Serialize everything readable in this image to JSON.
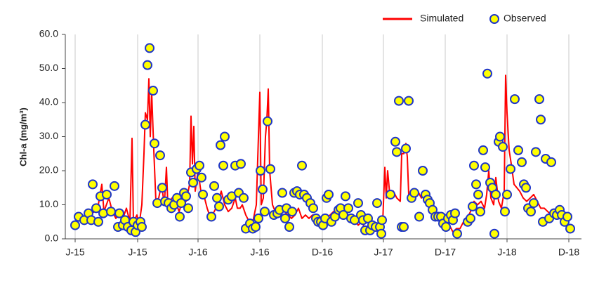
{
  "chart_data": {
    "type": "line",
    "ylabel": "Chl-a (mg/m³)",
    "xlim": [
      -14,
      721
    ],
    "xticks": [
      {
        "value": 0,
        "label": "J-15"
      },
      {
        "value": 89,
        "label": "J-15"
      },
      {
        "value": 175,
        "label": "J-16"
      },
      {
        "value": 263,
        "label": "J-16"
      },
      {
        "value": 352,
        "label": "D-16"
      },
      {
        "value": 439,
        "label": "J-17"
      },
      {
        "value": 527,
        "label": "D-17"
      },
      {
        "value": 615,
        "label": "J-18"
      },
      {
        "value": 703,
        "label": "D-18"
      }
    ],
    "ylim": [
      0,
      60
    ],
    "yticks": [
      {
        "value": 0,
        "label": "0.0"
      },
      {
        "value": 10,
        "label": "10.0"
      },
      {
        "value": 20,
        "label": "20.0"
      },
      {
        "value": 30,
        "label": "30.0"
      },
      {
        "value": 40,
        "label": "40.0"
      },
      {
        "value": 50,
        "label": "50.0"
      },
      {
        "value": 60,
        "label": "60.0"
      }
    ],
    "grid": "x",
    "legend": "upper right",
    "series": [
      {
        "name": "Simulated",
        "type": "line",
        "color": "#ff0000",
        "x": [
          0,
          8,
          18,
          28,
          33,
          38,
          41,
          48,
          53,
          58,
          63,
          68,
          73,
          78,
          81,
          83,
          88,
          91,
          95,
          98,
          100,
          103,
          105,
          107,
          109,
          112,
          115,
          119,
          123,
          127,
          130,
          132,
          138,
          143,
          148,
          153,
          158,
          163,
          165,
          167,
          169,
          171,
          175,
          179,
          183,
          188,
          193,
          198,
          203,
          208,
          213,
          218,
          223,
          228,
          231,
          235,
          238,
          243,
          248,
          253,
          258,
          261,
          263,
          265,
          268,
          271,
          273,
          275,
          277,
          281,
          285,
          289,
          293,
          298,
          303,
          308,
          313,
          318,
          323,
          328,
          333,
          338,
          343,
          348,
          353,
          358,
          363,
          368,
          373,
          378,
          383,
          388,
          393,
          398,
          403,
          408,
          413,
          418,
          423,
          428,
          433,
          438,
          441,
          443,
          445,
          448,
          453,
          458,
          463,
          465,
          468,
          471,
          473,
          475,
          479,
          483,
          488,
          493,
          498,
          503,
          508,
          513,
          518,
          523,
          528,
          533,
          538,
          543,
          548,
          553,
          558,
          563,
          568,
          573,
          578,
          583,
          586,
          589,
          592,
          596,
          599,
          603,
          607,
          611,
          613,
          615,
          618,
          621,
          625,
          629,
          633,
          638,
          643,
          648,
          653,
          658,
          663,
          668,
          673,
          678,
          683,
          688,
          693,
          698,
          703
        ],
        "values": [
          5,
          6,
          7,
          8,
          10,
          16,
          8,
          12,
          8,
          6,
          8,
          6,
          9,
          5,
          29.5,
          5,
          7,
          4,
          10,
          25,
          37,
          35,
          47,
          30,
          43,
          26,
          11,
          12,
          16,
          10,
          21,
          10,
          12,
          11,
          8,
          11,
          11,
          16,
          36,
          22,
          33,
          14,
          20,
          14,
          13,
          9,
          6,
          8,
          10,
          14,
          10,
          8,
          9,
          12,
          9,
          9,
          10,
          7,
          5,
          5,
          10,
          30,
          43,
          10,
          12,
          30,
          35,
          44,
          20,
          10,
          8,
          7,
          9,
          8,
          7,
          6,
          7,
          9,
          6,
          7,
          6,
          7,
          5,
          6,
          7,
          6,
          7,
          8,
          7,
          9,
          8,
          7,
          6,
          6,
          4,
          5,
          3,
          4,
          2,
          4,
          3,
          5,
          21,
          12,
          20,
          13,
          14,
          12,
          11,
          25,
          25,
          28,
          24,
          13,
          12,
          12,
          14,
          12,
          13,
          10,
          9,
          7,
          6,
          5,
          6,
          4,
          2,
          3,
          3,
          5,
          6,
          8,
          11,
          10,
          11,
          9,
          13,
          20,
          12,
          10,
          18,
          11,
          9,
          14,
          48,
          37,
          26,
          22,
          16,
          15,
          14,
          12,
          11,
          12,
          13,
          11,
          9,
          9,
          8,
          7,
          7,
          8,
          9,
          4,
          7
        ]
      },
      {
        "name": "Observed",
        "type": "scatter",
        "color": "#ffff00",
        "edgecolor": "#1f36c8",
        "x": [
          0,
          5,
          13,
          19,
          25,
          23,
          30,
          33,
          36,
          40,
          45,
          51,
          56,
          61,
          63,
          68,
          71,
          75,
          80,
          83,
          86,
          89,
          93,
          95,
          100,
          103,
          106,
          111,
          113,
          117,
          121,
          124,
          128,
          133,
          137,
          141,
          145,
          149,
          151,
          155,
          158,
          161,
          165,
          168,
          173,
          177,
          180,
          182,
          194,
          198,
          202,
          205,
          207,
          211,
          213,
          218,
          223,
          228,
          233,
          236,
          240,
          243,
          249,
          253,
          257,
          261,
          264,
          267,
          270,
          274,
          278,
          283,
          288,
          291,
          295,
          299,
          301,
          305,
          309,
          312,
          316,
          320,
          323,
          326,
          330,
          335,
          339,
          343,
          346,
          350,
          353,
          356,
          358,
          361,
          365,
          370,
          375,
          378,
          382,
          385,
          389,
          393,
          398,
          403,
          407,
          410,
          413,
          417,
          420,
          423,
          428,
          430,
          434,
          436,
          437,
          449,
          456,
          458,
          461,
          465,
          468,
          471,
          475,
          479,
          483,
          490,
          495,
          499,
          502,
          505,
          509,
          513,
          517,
          521,
          524,
          528,
          531,
          535,
          538,
          541,
          544,
          559,
          563,
          566,
          568,
          571,
          574,
          577,
          581,
          584,
          587,
          591,
          594,
          597,
          599,
          603,
          605,
          609,
          612,
          615,
          620,
          626,
          631,
          636,
          639,
          642,
          645,
          649,
          653,
          656,
          661,
          663,
          666,
          670,
          675,
          678,
          682,
          686,
          690,
          693,
          697,
          701,
          705
        ],
        "values": [
          4,
          6.5,
          5.5,
          7.5,
          16,
          5.5,
          9,
          5,
          12.5,
          7.5,
          13,
          8,
          15.5,
          3.5,
          7.5,
          4,
          5.5,
          3.5,
          2.5,
          5,
          2,
          4,
          5,
          3.5,
          33.5,
          51,
          56,
          43.5,
          28,
          10.5,
          24.5,
          15,
          11,
          10.5,
          9,
          10,
          12,
          6.5,
          10.5,
          13.5,
          12.5,
          9,
          19.5,
          16.5,
          20.5,
          21.5,
          18,
          13,
          6.5,
          15.5,
          12,
          9.5,
          27.5,
          21.5,
          30,
          11.5,
          12.5,
          21.5,
          13.5,
          22,
          12,
          3,
          4.5,
          3,
          3.5,
          6,
          20,
          14.5,
          8,
          34.5,
          20.5,
          7,
          7.5,
          8.5,
          13.5,
          6,
          9,
          3.5,
          8,
          13.5,
          14,
          13,
          21.5,
          13,
          12,
          10.5,
          9,
          6,
          5,
          5,
          4,
          6,
          12,
          13,
          5,
          6.5,
          8.5,
          9,
          7,
          12.5,
          9,
          6,
          5.5,
          10.5,
          7,
          5.5,
          2.5,
          6,
          2.5,
          4,
          3.5,
          10.5,
          3.5,
          1.5,
          5.5,
          13,
          28.5,
          25.5,
          40.5,
          3.5,
          3.5,
          26.5,
          40.5,
          12,
          13.5,
          6.5,
          20,
          13,
          11.5,
          10.5,
          8.5,
          6.5,
          6.5,
          6.5,
          4.5,
          3.5,
          6,
          7,
          5.5,
          7.5,
          1.5,
          5,
          6,
          9.5,
          21.5,
          16,
          13,
          8,
          26,
          21,
          48.5,
          16.5,
          15,
          1.5,
          13,
          28.5,
          30,
          27,
          8,
          13,
          20.5,
          41,
          26,
          22.5,
          16,
          15,
          9,
          8,
          10.5,
          25.5,
          41,
          35,
          5,
          23.5,
          6,
          22.5,
          7.5,
          7,
          8.5,
          7,
          5,
          6.5,
          3
        ]
      }
    ]
  }
}
